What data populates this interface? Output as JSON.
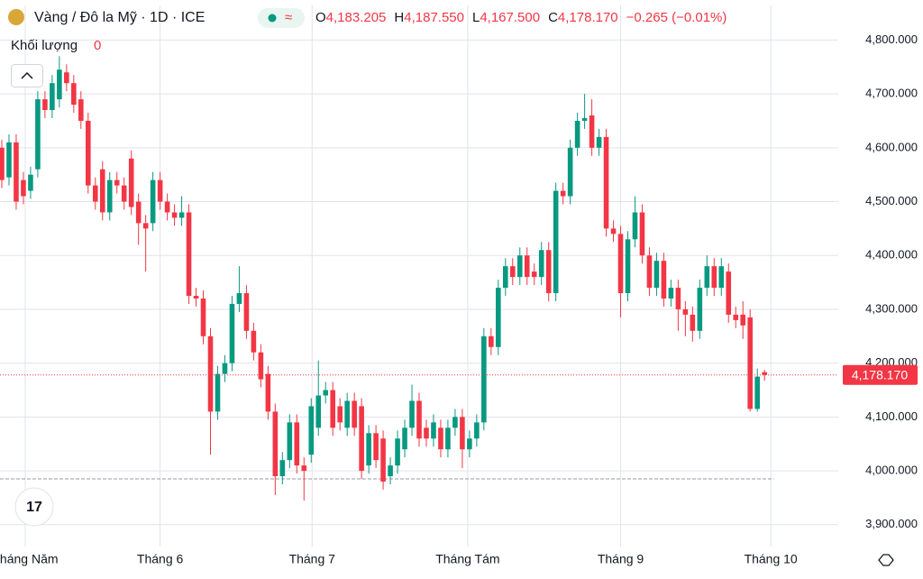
{
  "header": {
    "symbol": "Vàng / Đô la Mỹ · 1D · ICE",
    "ohlc": [
      {
        "label": "O",
        "value": "4,183.205"
      },
      {
        "label": "H",
        "value": "4,187.550"
      },
      {
        "label": "L",
        "value": "4,167.500"
      },
      {
        "label": "C",
        "value": "4,178.170"
      }
    ],
    "change": "−0.265 (−0.01%)",
    "volume_label": "Khối lượng",
    "volume_value": "0"
  },
  "chart_data": {
    "type": "candlestick",
    "up_color": "#089981",
    "down_color": "#f23645",
    "open": [
      4600,
      4545,
      4610,
      4540,
      4520,
      4560,
      4690,
      4670,
      4690,
      4740,
      4720,
      4690,
      4650,
      4530,
      4560,
      4480,
      4540,
      4530,
      4580,
      4500,
      4460,
      4460,
      4540,
      4500,
      4480,
      4470,
      4480,
      4325,
      4320,
      4250,
      4110,
      4180,
      4200,
      4310,
      4330,
      4260,
      4220,
      4180,
      4110,
      3990,
      4020,
      4090,
      4010,
      4030,
      4080,
      4140,
      4150,
      4120,
      4080,
      4130,
      4120,
      4010,
      4070,
      4060,
      3990,
      4010,
      4040,
      4080,
      4130,
      4080,
      4060,
      4080,
      4040,
      4080,
      4100,
      4040,
      4060,
      4090,
      4250,
      4230,
      4340,
      4380,
      4360,
      4400,
      4370,
      4360,
      4410,
      4330,
      4520,
      4510,
      4600,
      4650,
      4660,
      4600,
      4620,
      4450,
      4440,
      4330,
      4430,
      4480,
      4400,
      4340,
      4390,
      4320,
      4340,
      4300,
      4290,
      4260,
      4340,
      4380,
      4340,
      4370,
      4290,
      4290,
      4285,
      4115,
      4183.205
    ],
    "high": [
      4615,
      4625,
      4625,
      4555,
      4565,
      4705,
      4705,
      4735,
      4770,
      4755,
      4735,
      4705,
      4665,
      4545,
      4575,
      4555,
      4555,
      4545,
      4595,
      4515,
      4475,
      4555,
      4555,
      4515,
      4495,
      4510,
      4495,
      4340,
      4335,
      4265,
      4195,
      4215,
      4325,
      4380,
      4345,
      4275,
      4235,
      4195,
      4125,
      4035,
      4105,
      4105,
      4025,
      4135,
      4205,
      4165,
      4165,
      4135,
      4145,
      4145,
      4135,
      4085,
      4085,
      4075,
      4025,
      4075,
      4095,
      4160,
      4145,
      4095,
      4105,
      4095,
      4095,
      4115,
      4115,
      4075,
      4105,
      4265,
      4265,
      4355,
      4395,
      4395,
      4415,
      4415,
      4385,
      4425,
      4425,
      4535,
      4535,
      4615,
      4665,
      4700,
      4690,
      4635,
      4635,
      4465,
      4455,
      4445,
      4510,
      4495,
      4415,
      4405,
      4405,
      4355,
      4355,
      4315,
      4305,
      4355,
      4400,
      4395,
      4395,
      4385,
      4305,
      4315,
      4300,
      4190,
      4187.55
    ],
    "low": [
      4525,
      4530,
      4485,
      4495,
      4505,
      4545,
      4655,
      4655,
      4675,
      4705,
      4665,
      4635,
      4515,
      4485,
      4465,
      4465,
      4515,
      4485,
      4475,
      4420,
      4370,
      4445,
      4485,
      4465,
      4455,
      4455,
      4310,
      4305,
      4235,
      4030,
      4095,
      4165,
      4185,
      4295,
      4245,
      4205,
      4155,
      4095,
      3955,
      3975,
      4005,
      3995,
      3945,
      4015,
      4065,
      4125,
      4065,
      4075,
      4065,
      4065,
      3985,
      3995,
      4005,
      3965,
      3975,
      3995,
      4025,
      4065,
      4045,
      4045,
      4045,
      4025,
      4025,
      4065,
      4005,
      4025,
      4045,
      4075,
      4215,
      4215,
      4325,
      4345,
      4345,
      4345,
      4345,
      4345,
      4315,
      4315,
      4495,
      4495,
      4585,
      4635,
      4585,
      4585,
      4435,
      4425,
      4285,
      4315,
      4415,
      4385,
      4325,
      4325,
      4305,
      4305,
      4260,
      4250,
      4240,
      4245,
      4325,
      4325,
      4325,
      4275,
      4265,
      4245,
      4110,
      4110,
      4167.5
    ],
    "close": [
      4540,
      4610,
      4500,
      4510,
      4550,
      4690,
      4670,
      4720,
      4745,
      4720,
      4680,
      4650,
      4530,
      4500,
      4480,
      4540,
      4530,
      4500,
      4490,
      4460,
      4450,
      4540,
      4500,
      4480,
      4470,
      4480,
      4325,
      4320,
      4250,
      4110,
      4180,
      4200,
      4310,
      4330,
      4260,
      4220,
      4170,
      4110,
      3990,
      4020,
      4090,
      4010,
      4000,
      4120,
      4140,
      4150,
      4080,
      4090,
      4130,
      4080,
      4000,
      4070,
      4020,
      3980,
      4010,
      4060,
      4080,
      4130,
      4060,
      4060,
      4090,
      4040,
      4080,
      4100,
      4040,
      4060,
      4090,
      4250,
      4230,
      4340,
      4380,
      4360,
      4400,
      4360,
      4360,
      4410,
      4330,
      4520,
      4510,
      4600,
      4650,
      4655,
      4600,
      4620,
      4450,
      4440,
      4330,
      4430,
      4480,
      4400,
      4340,
      4390,
      4320,
      4340,
      4300,
      4290,
      4260,
      4340,
      4380,
      4340,
      4380,
      4290,
      4280,
      4270,
      4115,
      4175,
      4178.17
    ],
    "xlim": [
      -0.25,
      116.25
    ],
    "xticks": [
      {
        "value": 3.25,
        "label": "Tháng Năm"
      },
      {
        "value": 22,
        "label": "Tháng 6"
      },
      {
        "value": 43.125,
        "label": "Tháng 7"
      },
      {
        "value": 64.75,
        "label": "Tháng Tám"
      },
      {
        "value": 86,
        "label": "Tháng 9"
      },
      {
        "value": 106.875,
        "label": "Tháng 10"
      }
    ],
    "ylim": [
      4864.32,
      3859.46
    ],
    "yticks": [
      {
        "value": 4800,
        "label": "4,800.000"
      },
      {
        "value": 4700,
        "label": "4,700.000"
      },
      {
        "value": 4600,
        "label": "4,600.000"
      },
      {
        "value": 4500,
        "label": "4,500.000"
      },
      {
        "value": 4400,
        "label": "4,400.000"
      },
      {
        "value": 4300,
        "label": "4,300.000"
      },
      {
        "value": 4200,
        "label": "4,200.000"
      },
      {
        "value": 4100,
        "label": "4,100.000"
      },
      {
        "value": 4000,
        "label": "4,000.000"
      },
      {
        "value": 3900,
        "label": "3,900.000"
      }
    ],
    "last_price": {
      "value": 4178.17,
      "label": "4,178.170"
    },
    "reference_line": 3985,
    "grid": true
  }
}
